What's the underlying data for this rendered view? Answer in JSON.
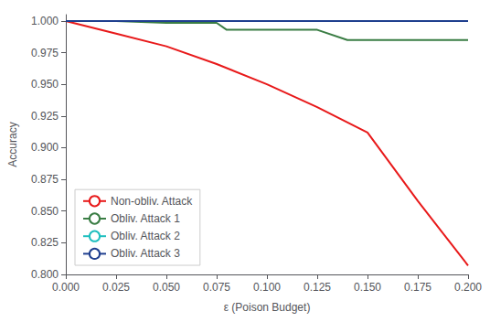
{
  "chart_data": {
    "type": "line",
    "xlabel": "ε (Poison Budget)",
    "ylabel": "Accuracy",
    "xlim": [
      0.0,
      0.2
    ],
    "ylim": [
      0.8,
      1.005
    ],
    "xticks": [
      {
        "value": 0.0,
        "label": "0.000"
      },
      {
        "value": 0.025,
        "label": "0.025"
      },
      {
        "value": 0.05,
        "label": "0.050"
      },
      {
        "value": 0.075,
        "label": "0.075"
      },
      {
        "value": 0.1,
        "label": "0.100"
      },
      {
        "value": 0.125,
        "label": "0.125"
      },
      {
        "value": 0.15,
        "label": "0.150"
      },
      {
        "value": 0.175,
        "label": "0.175"
      },
      {
        "value": 0.2,
        "label": "0.200"
      }
    ],
    "yticks": [
      {
        "value": 0.8,
        "label": "0.800"
      },
      {
        "value": 0.825,
        "label": "0.825"
      },
      {
        "value": 0.85,
        "label": "0.850"
      },
      {
        "value": 0.875,
        "label": "0.875"
      },
      {
        "value": 0.9,
        "label": "0.900"
      },
      {
        "value": 0.925,
        "label": "0.925"
      },
      {
        "value": 0.95,
        "label": "0.950"
      },
      {
        "value": 0.975,
        "label": "0.975"
      },
      {
        "value": 1.0,
        "label": "1.000"
      }
    ],
    "series": [
      {
        "name": "Non-obliv. Attack",
        "color": "#e8191a",
        "x": [
          0.0,
          0.025,
          0.05,
          0.075,
          0.1,
          0.125,
          0.15,
          0.175,
          0.2
        ],
        "values": [
          1.0,
          0.99,
          0.98,
          0.966,
          0.95,
          0.932,
          0.912,
          0.858,
          0.807
        ]
      },
      {
        "name": "Obliv. Attack 1",
        "color": "#3a7d44",
        "x": [
          0.0,
          0.025,
          0.05,
          0.075,
          0.08,
          0.1,
          0.125,
          0.14,
          0.15,
          0.175,
          0.2
        ],
        "values": [
          1.0,
          1.0,
          0.9985,
          0.9985,
          0.993,
          0.993,
          0.993,
          0.985,
          0.985,
          0.985,
          0.985
        ]
      },
      {
        "name": "Obliv. Attack 2",
        "color": "#1cbebe",
        "x": [
          0.0,
          0.025,
          0.05,
          0.075,
          0.1,
          0.125,
          0.15,
          0.175,
          0.2
        ],
        "values": [
          1.0,
          1.0,
          1.0,
          1.0,
          1.0,
          1.0,
          1.0,
          1.0,
          1.0
        ]
      },
      {
        "name": "Obliv. Attack 3",
        "color": "#1f3f8f",
        "x": [
          0.0,
          0.025,
          0.05,
          0.075,
          0.1,
          0.125,
          0.15,
          0.175,
          0.2
        ],
        "values": [
          1.0,
          1.0,
          1.0,
          1.0,
          1.0,
          1.0,
          1.0,
          1.0,
          1.0
        ]
      }
    ],
    "legend": "lower left",
    "grid": false
  }
}
